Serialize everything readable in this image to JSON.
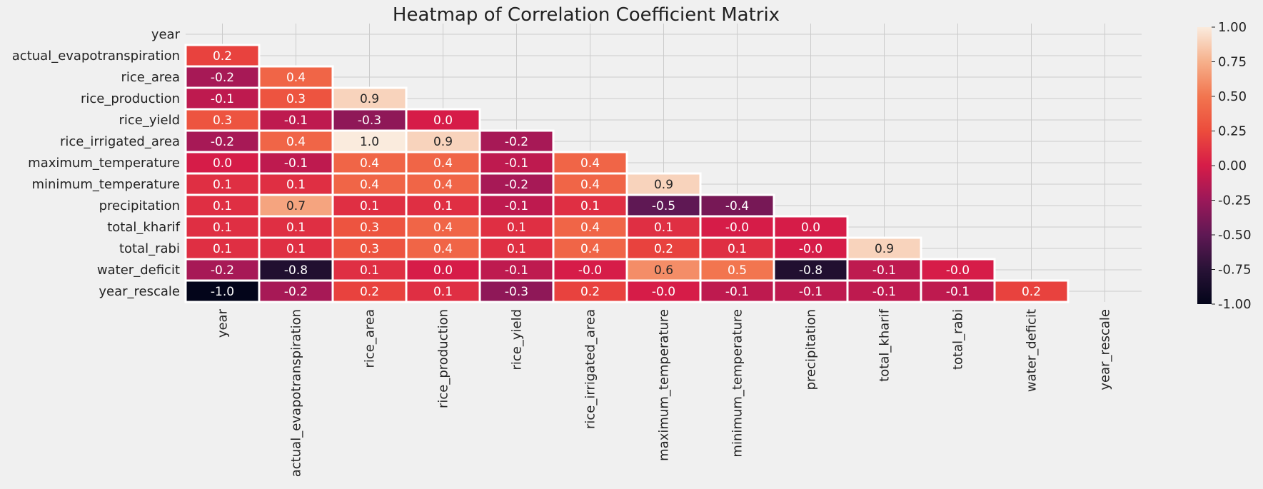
{
  "chart_data": {
    "type": "heatmap",
    "title": "Heatmap of Correlation Coefficient Matrix",
    "xlabel": "",
    "ylabel": "",
    "variables": [
      "year",
      "actual_evapotranspiration",
      "rice_area",
      "rice_production",
      "rice_yield",
      "rice_irrigated_area",
      "maximum_temperature",
      "minimum_temperature",
      "precipitation",
      "total_kharif",
      "total_rabi",
      "water_deficit",
      "year_rescale"
    ],
    "mask": "upper_triangle_and_diagonal",
    "matrix_lower": [
      [],
      [
        "0.2"
      ],
      [
        "-0.2",
        "0.4"
      ],
      [
        "-0.1",
        "0.3",
        "0.9"
      ],
      [
        "0.3",
        "-0.1",
        "-0.3",
        "0.0"
      ],
      [
        "-0.2",
        "0.4",
        "1.0",
        "0.9",
        "-0.2"
      ],
      [
        "0.0",
        "-0.1",
        "0.4",
        "0.4",
        "-0.1",
        "0.4"
      ],
      [
        "0.1",
        "0.1",
        "0.4",
        "0.4",
        "-0.2",
        "0.4",
        "0.9"
      ],
      [
        "0.1",
        "0.7",
        "0.1",
        "0.1",
        "-0.1",
        "0.1",
        "-0.5",
        "-0.4"
      ],
      [
        "0.1",
        "0.1",
        "0.3",
        "0.4",
        "0.1",
        "0.4",
        "0.1",
        "-0.0",
        "0.0"
      ],
      [
        "0.1",
        "0.1",
        "0.3",
        "0.4",
        "0.1",
        "0.4",
        "0.2",
        "0.1",
        "-0.0",
        "0.9"
      ],
      [
        "-0.2",
        "-0.8",
        "0.1",
        "0.0",
        "-0.1",
        "-0.0",
        "0.6",
        "0.5",
        "-0.8",
        "-0.1",
        "-0.0"
      ],
      [
        "-1.0",
        "-0.2",
        "0.2",
        "0.1",
        "-0.3",
        "0.2",
        "-0.0",
        "-0.1",
        "-0.1",
        "-0.1",
        "-0.1",
        "0.2"
      ]
    ],
    "colorbar": {
      "min": -1.0,
      "max": 1.0,
      "ticks": [
        "1.00",
        "0.75",
        "0.50",
        "0.25",
        "0.00",
        "-0.25",
        "-0.50",
        "-0.75",
        "-1.00"
      ],
      "colormap": "rocket"
    },
    "grid": true
  }
}
